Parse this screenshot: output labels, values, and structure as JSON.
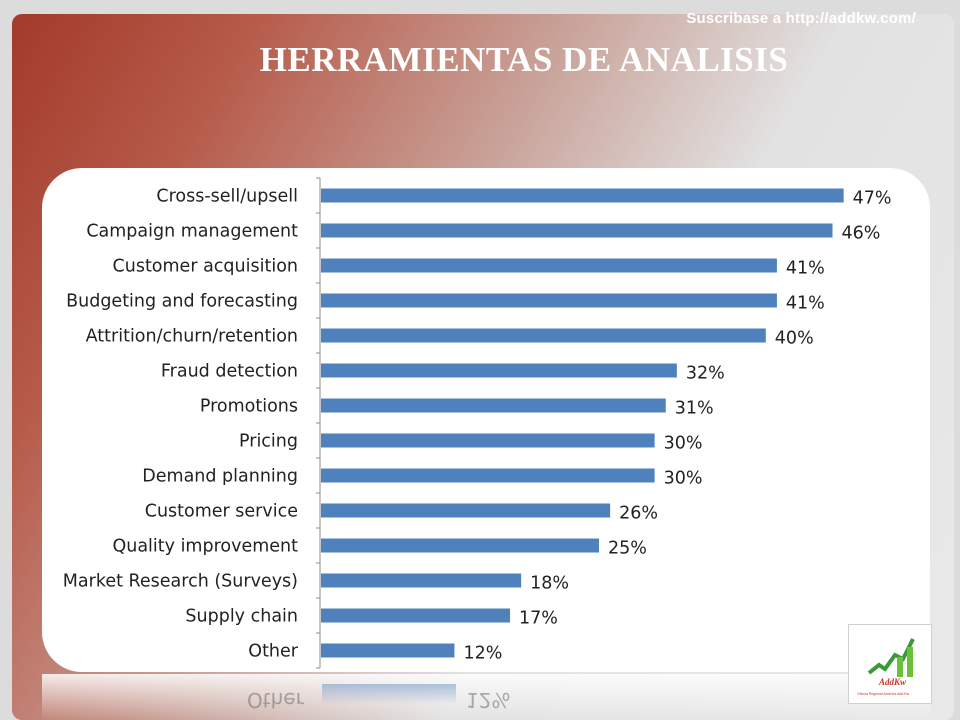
{
  "header": {
    "url_text": "Suscribase a http://addkw.com/",
    "title": "HERRAMIENTAS DE ANALISIS"
  },
  "logo": {
    "text": "AddKw",
    "caption": "Oficina Regional América Add Kw"
  },
  "colors": {
    "bar": "#4f81bd",
    "accent": "#a33a2b"
  },
  "chart_data": {
    "type": "bar",
    "orientation": "horizontal",
    "categories": [
      "Cross-sell/upsell",
      "Campaign management",
      "Customer acquisition",
      "Budgeting and forecasting",
      "Attrition/churn/retention",
      "Fraud detection",
      "Promotions",
      "Pricing",
      "Demand planning",
      "Customer service",
      "Quality improvement",
      "Market Research (Surveys)",
      "Supply chain",
      "Other"
    ],
    "values": [
      47,
      46,
      41,
      41,
      40,
      32,
      31,
      30,
      30,
      26,
      25,
      18,
      17,
      12
    ],
    "value_labels": [
      "47%",
      "46%",
      "41%",
      "41%",
      "40%",
      "32%",
      "31%",
      "30%",
      "30%",
      "26%",
      "25%",
      "18%",
      "17%",
      "12%"
    ],
    "title": "",
    "xlabel": "",
    "ylabel": "",
    "xlim": [
      0,
      50
    ],
    "grid": false,
    "legend": "none"
  }
}
